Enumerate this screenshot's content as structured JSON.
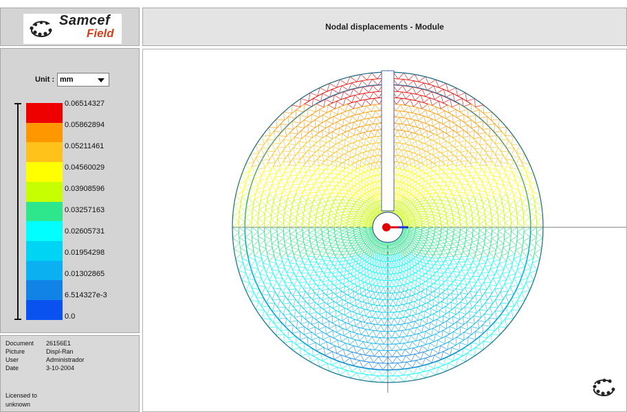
{
  "logo": {
    "word_1": "Samcef",
    "word_2": "Field",
    "icon": "samcef-logo-icon"
  },
  "title": "Nodal displacements - Module",
  "unit": {
    "label": "Unit :",
    "value": "mm"
  },
  "legend": {
    "values": [
      "0.06514327",
      "0.05862894",
      "0.05211461",
      "0.04560029",
      "0.03908596",
      "0.03257163",
      "0.02605731",
      "0.01954298",
      "0.01302865",
      "6.514327e-3",
      "0.0"
    ],
    "colors": [
      "#ee0000",
      "#ff9800",
      "#ffc21a",
      "#ffff00",
      "#c8ff00",
      "#2ee68c",
      "#00ffff",
      "#00d4f4",
      "#0ab0f0",
      "#1283e6",
      "#0a52f0"
    ]
  },
  "info": {
    "rows": [
      {
        "key": "Document",
        "value": "26156E1"
      },
      {
        "key": "Picture",
        "value": "Displ-Ran"
      },
      {
        "key": "User",
        "value": "Administrador"
      },
      {
        "key": "Date",
        "value": "3-10-2004"
      }
    ],
    "license_1": "Licensed to",
    "license_2": "unknown"
  },
  "viewport": {
    "icon": "samcef-logo-icon",
    "axis_marker_color": "#e00000"
  }
}
